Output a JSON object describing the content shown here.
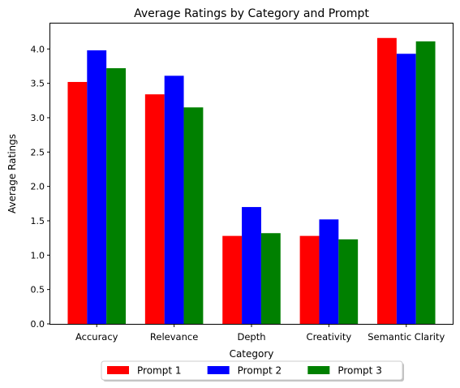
{
  "chart_data": {
    "type": "bar",
    "title": "Average Ratings by Category and Prompt",
    "xlabel": "Category",
    "ylabel": "Average Ratings",
    "categories": [
      "Accuracy",
      "Relevance",
      "Depth",
      "Creativity",
      "Semantic Clarity"
    ],
    "series": [
      {
        "name": "Prompt 1",
        "color": "#ff0000",
        "values": [
          3.52,
          3.34,
          1.28,
          1.28,
          4.16
        ]
      },
      {
        "name": "Prompt 2",
        "color": "#0000ff",
        "values": [
          3.98,
          3.61,
          1.7,
          1.52,
          3.93
        ]
      },
      {
        "name": "Prompt 3",
        "color": "#008000",
        "values": [
          3.72,
          3.15,
          1.32,
          1.23,
          4.11
        ]
      }
    ],
    "ylim": [
      0,
      4.37
    ],
    "yticks": [
      "0.0",
      "0.5",
      "1.0",
      "1.5",
      "2.0",
      "2.5",
      "3.0",
      "3.5",
      "4.0"
    ],
    "grid": false,
    "legend_position": "bottom-center"
  }
}
